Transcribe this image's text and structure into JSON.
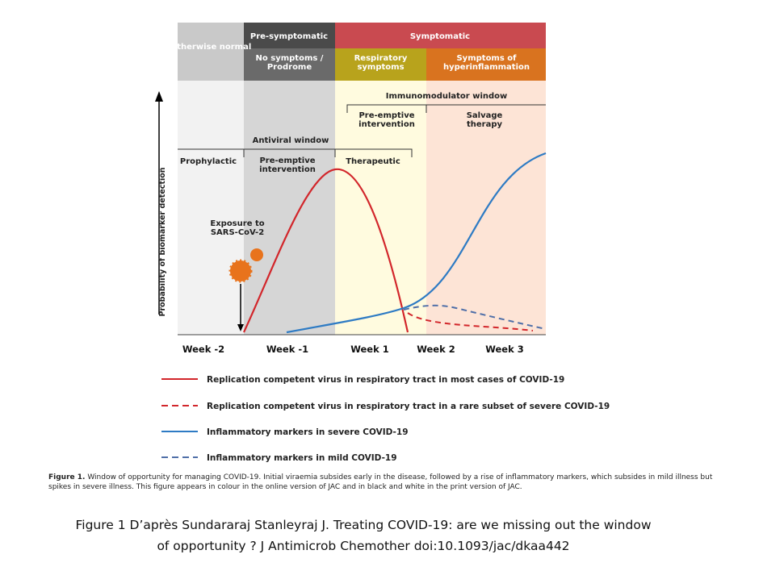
{
  "header": {
    "otherwise": "Otherwise normal",
    "presymptomatic": "Pre-symptomatic",
    "symptomatic": "Symptomatic",
    "no_symptoms": "No symptoms / Prodrome",
    "respiratory": "Respiratory symptoms",
    "hyperinflammation": "Symptoms of hyperinflammation"
  },
  "windows": {
    "immunomodulator": "Immunomodulator window",
    "antiviral": "Antiviral window",
    "prophylactic": "Prophylactic",
    "preemptive_antiviral": "Pre-emptive intervention",
    "therapeutic": "Therapeutic",
    "preemptive_immuno": "Pre-emptive intervention",
    "salvage": "Salvage therapy"
  },
  "exposure": "Exposure to SARS-CoV-2",
  "y_axis": "Probability of biomarker detection",
  "x_labels": [
    "Week -2",
    "Week -1",
    "Week 1",
    "Week 2",
    "Week 3"
  ],
  "legend": [
    "Replication competent virus in respiratory tract in most cases of COVID-19",
    "Replication competent virus in respiratory tract in a rare subset of severe COVID-19",
    "Inflammatory markers in severe COVID-19",
    "Inflammatory markers in mild COVID-19"
  ],
  "caption": {
    "label": "Figure 1.",
    "text": "Window of opportunity for managing COVID-19. Initial viraemia subsides early in the disease, followed by a rise of inflammatory markers, which subsides in mild illness but spikes in severe illness. This figure appears in colour in the online version of JAC and in black and white in the print version of JAC."
  },
  "credit": [
    "Figure 1 D’après Sundararaj Stanleyraj J. Treating COVID-19: are we missing out the window",
    "of opportunity ? J Antimicrob Chemother doi:10.1093/jac/dkaa442"
  ]
}
